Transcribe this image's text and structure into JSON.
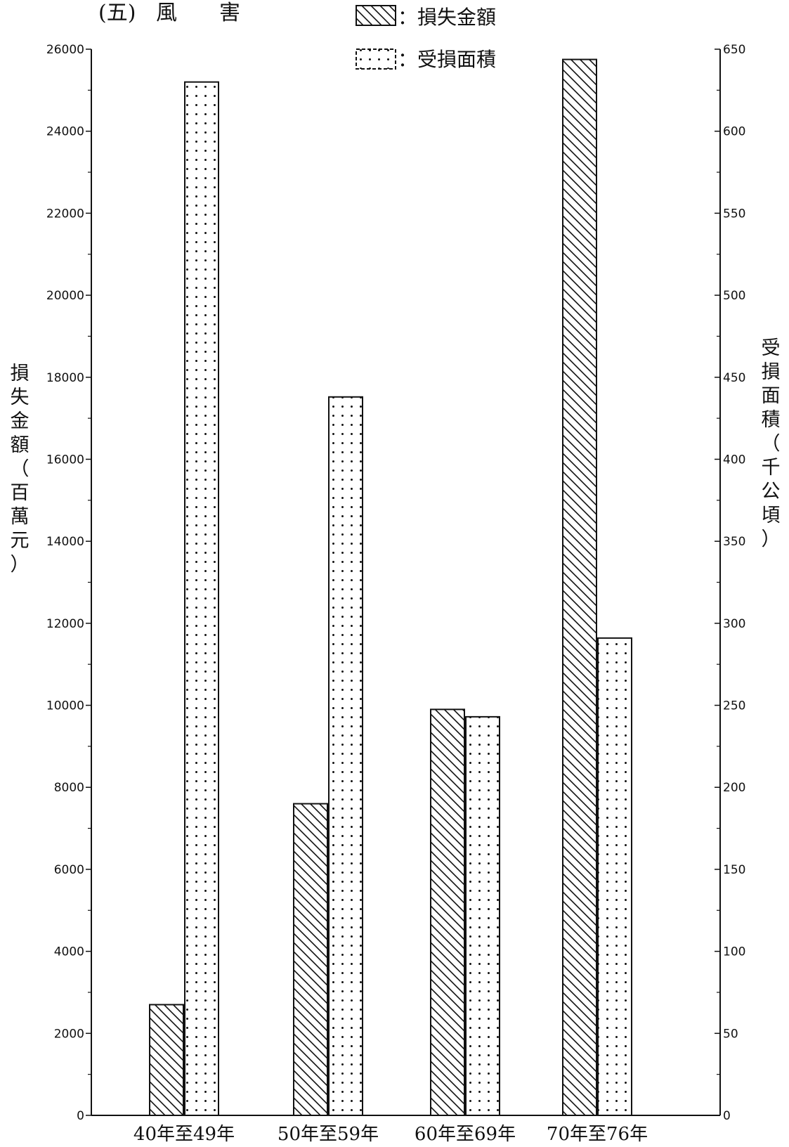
{
  "chart_data": {
    "type": "bar",
    "title_marker": "(五)",
    "title": "風　　害",
    "categories": [
      "40年至49年",
      "50年至59年",
      "60年至69年",
      "70年至76年"
    ],
    "series": [
      {
        "name": "損失金額",
        "axis": "left",
        "pattern": "hatch",
        "values": [
          2700,
          7600,
          9900,
          25750
        ]
      },
      {
        "name": "受損面積",
        "axis": "right",
        "pattern": "dots",
        "values": [
          630,
          438,
          243,
          291
        ]
      }
    ],
    "left_axis": {
      "label": "損失金額（百萬元）",
      "range": [
        0,
        26000
      ],
      "ticks": [
        "0",
        "2000",
        "4000",
        "6000",
        "8000",
        "10000",
        "12000",
        "14000",
        "16000",
        "18000",
        "20000",
        "22000",
        "24000",
        "26000"
      ]
    },
    "right_axis": {
      "label": "受損面積（千公頃）",
      "range": [
        0,
        650
      ],
      "ticks": [
        "0",
        "50",
        "100",
        "150",
        "200",
        "250",
        "300",
        "350",
        "400",
        "450",
        "500",
        "550",
        "600",
        "650"
      ]
    },
    "legend": [
      {
        "label": "：損失金額",
        "pattern": "hatch"
      },
      {
        "label": "：受損面積",
        "pattern": "dots"
      }
    ],
    "legend_position": "top-center",
    "grid": false
  }
}
